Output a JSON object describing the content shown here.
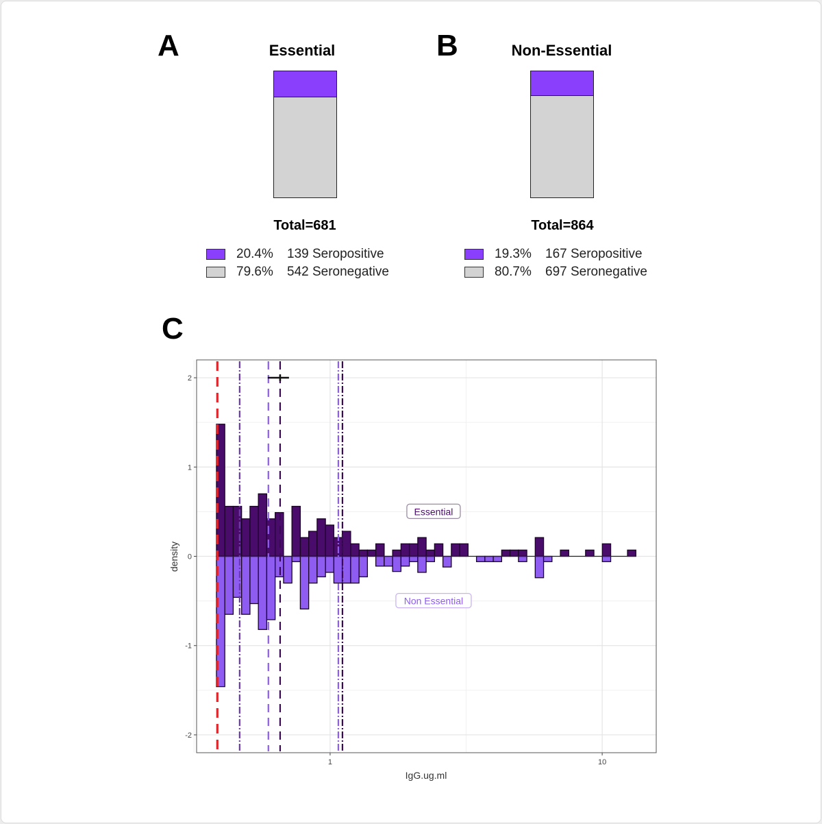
{
  "colors": {
    "seropositive": "#8a3ffc",
    "seronegative": "#d3d3d3",
    "essential": "#4a0c6b",
    "non_essential": "#8f5cf2",
    "cutoff": "#e0252b"
  },
  "panel_a": {
    "letter": "A",
    "title": "Essential",
    "total": "Total=681",
    "seropositive_fraction": 0.204,
    "legend": [
      {
        "pct": "20.4%",
        "label": "139 Seropositive"
      },
      {
        "pct": "79.6%",
        "label": "542 Seronegative"
      }
    ]
  },
  "panel_b": {
    "letter": "B",
    "title": "Non-Essential",
    "total": "Total=864",
    "seropositive_fraction": 0.193,
    "legend": [
      {
        "pct": "19.3%",
        "label": "167 Seropositive"
      },
      {
        "pct": "80.7%",
        "label": "697 Seronegative"
      }
    ]
  },
  "panel_c": {
    "letter": "C"
  },
  "chart_data": {
    "type": "bar",
    "subtype": "mirrored histogram",
    "xlabel": "IgG.ug.ml",
    "ylabel": "density",
    "x_scale": "log10",
    "xlim": [
      0.323,
      15.8
    ],
    "ylim": [
      -2.2,
      2.2
    ],
    "xticks": [
      {
        "value": 1,
        "label": "1"
      },
      {
        "value": 10,
        "label": "10"
      }
    ],
    "yticks": [
      {
        "value": 2,
        "label": "2"
      },
      {
        "value": 1,
        "label": "1"
      },
      {
        "value": 0,
        "label": "0"
      },
      {
        "value": -1,
        "label": "-1"
      },
      {
        "value": -2,
        "label": "-2"
      }
    ],
    "grid": true,
    "bin_range": [
      0.382,
      13.3
    ],
    "series": [
      {
        "name": "Essential",
        "direction": "up",
        "values": [
          1.48,
          0.56,
          0.56,
          0.42,
          0.56,
          0.7,
          0.42,
          0.49,
          0,
          0.56,
          0.21,
          0.28,
          0.42,
          0.35,
          0.21,
          0.28,
          0.14,
          0.07,
          0.07,
          0.14,
          0,
          0.07,
          0.14,
          0.14,
          0.21,
          0.07,
          0.14,
          0,
          0.14,
          0.14,
          0,
          0,
          0,
          0,
          0.07,
          0.07,
          0.07,
          0,
          0.21,
          0,
          0,
          0.07,
          0,
          0,
          0.07,
          0,
          0.14,
          0,
          0,
          0.07
        ]
      },
      {
        "name": "Non Essential",
        "direction": "down",
        "values": [
          1.46,
          0.65,
          0.46,
          0.65,
          0.53,
          0.82,
          0.71,
          0.23,
          0.3,
          0.06,
          0.59,
          0.3,
          0.23,
          0.18,
          0.3,
          0.3,
          0.3,
          0.23,
          0,
          0.11,
          0.11,
          0.17,
          0.11,
          0.06,
          0.18,
          0.06,
          0,
          0.12,
          0,
          0,
          0,
          0.06,
          0.06,
          0.06,
          0,
          0,
          0.06,
          0,
          0.24,
          0.06,
          0,
          0,
          0,
          0,
          0,
          0,
          0.06,
          0,
          0,
          0
        ]
      }
    ],
    "vlines": [
      {
        "x": 0.385,
        "style": "dashed",
        "color": "#e0252b"
      },
      {
        "x": 0.465,
        "style": "dotdash",
        "color": "#6a3aa8"
      },
      {
        "x": 0.593,
        "style": "dashed",
        "color": "#8f5cf2"
      },
      {
        "x": 0.655,
        "style": "dashed",
        "color": "#3a0a55"
      },
      {
        "x": 1.072,
        "style": "dotdash",
        "color": "#8f5cf2"
      },
      {
        "x": 1.11,
        "style": "dotdash",
        "color": "#3a0a55"
      }
    ],
    "errorbar": {
      "y": 2,
      "x_min": 0.59,
      "x_max": 0.706,
      "center": 0.655
    },
    "annotations": [
      {
        "text": "Essential",
        "x": 2.4,
        "y": 0.5,
        "color": "#4a0c6b"
      },
      {
        "text": "Non Essential",
        "x": 2.4,
        "y": -0.5,
        "color": "#8f5cf2"
      }
    ]
  }
}
